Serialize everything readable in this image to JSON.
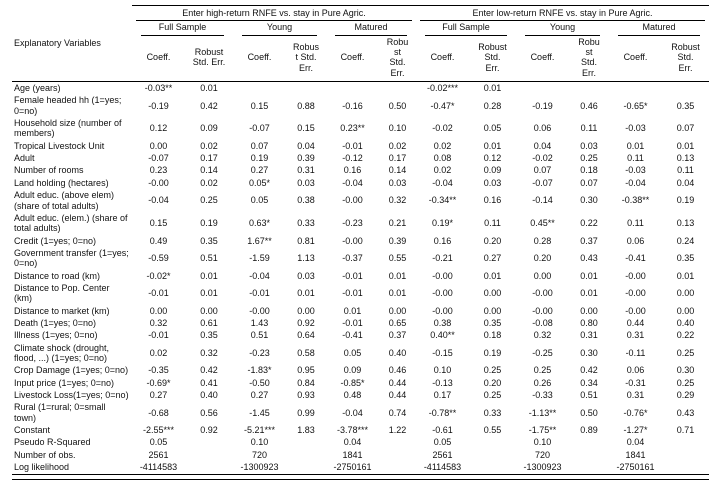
{
  "table": {
    "corner_label": "Explanatory Variables",
    "groups": [
      {
        "title": "Enter high-return RNFE vs. stay in Pure Agric."
      },
      {
        "title": "Enter low-return RNFE vs. stay in Pure Agric."
      }
    ],
    "subgroups": [
      "Full Sample",
      "Young",
      "Matured",
      "Full Sample",
      "Young",
      "Matured"
    ],
    "measure_headers": [
      "Coeff.",
      "Robust\nStd. Err.",
      "Coeff.",
      "Robus\nt Std.\nErr.",
      "Coeff.",
      "Robu\nst\nStd.\nErr.",
      "Coeff.",
      "Robust\nStd.\nErr.",
      "Coeff.",
      "Robu\nst\nStd.\nErr.",
      "Coeff.",
      "Robust\nStd.\nErr."
    ],
    "rows": [
      {
        "label": "Age (years)",
        "values": [
          "-0.03**",
          "0.01",
          "",
          "",
          "",
          "",
          "-0.02***",
          "0.01",
          "",
          "",
          "",
          ""
        ]
      },
      {
        "label": "Female headed hh (1=yes; 0=no)",
        "values": [
          "-0.19",
          "0.42",
          "0.15",
          "0.88",
          "-0.16",
          "0.50",
          "-0.47*",
          "0.28",
          "-0.19",
          "0.46",
          "-0.65*",
          "0.35"
        ]
      },
      {
        "label": "Household size (number of members)",
        "values": [
          "0.12",
          "0.09",
          "-0.07",
          "0.15",
          "0.23**",
          "0.10",
          "-0.02",
          "0.05",
          "0.06",
          "0.11",
          "-0.03",
          "0.07"
        ]
      },
      {
        "label": "Tropical Livestock Unit",
        "values": [
          "0.00",
          "0.02",
          "0.07",
          "0.04",
          "-0.01",
          "0.02",
          "0.02",
          "0.01",
          "0.04",
          "0.03",
          "0.01",
          "0.01"
        ]
      },
      {
        "label": "Adult",
        "values": [
          "-0.07",
          "0.17",
          "0.19",
          "0.39",
          "-0.12",
          "0.17",
          "0.08",
          "0.12",
          "-0.02",
          "0.25",
          "0.11",
          "0.13"
        ]
      },
      {
        "label": "Number of rooms",
        "values": [
          "0.23",
          "0.14",
          "0.27",
          "0.31",
          "0.16",
          "0.14",
          "0.02",
          "0.09",
          "0.07",
          "0.18",
          "-0.03",
          "0.11"
        ]
      },
      {
        "label": "Land holding (hectares)",
        "values": [
          "-0.00",
          "0.02",
          "0.05*",
          "0.03",
          "-0.04",
          "0.03",
          "-0.04",
          "0.03",
          "-0.07",
          "0.07",
          "-0.04",
          "0.04"
        ]
      },
      {
        "label": "Adult educ. (above elem) (share of total adults)",
        "values": [
          "-0.04",
          "0.25",
          "0.05",
          "0.38",
          "-0.00",
          "0.32",
          "-0.34**",
          "0.16",
          "-0.14",
          "0.30",
          "-0.38**",
          "0.19"
        ]
      },
      {
        "label": "Adult educ. (elem.) (share of total adults)",
        "values": [
          "0.15",
          "0.19",
          "0.63*",
          "0.33",
          "-0.23",
          "0.21",
          "0.19*",
          "0.11",
          "0.45**",
          "0.22",
          "0.11",
          "0.13"
        ]
      },
      {
        "label": "Credit (1=yes; 0=no)",
        "values": [
          "0.49",
          "0.35",
          "1.67**",
          "0.81",
          "-0.00",
          "0.39",
          "0.16",
          "0.20",
          "0.28",
          "0.37",
          "0.06",
          "0.24"
        ]
      },
      {
        "label": "Government transfer (1=yes; 0=no)",
        "values": [
          "-0.59",
          "0.51",
          "-1.59",
          "1.13",
          "-0.37",
          "0.55",
          "-0.21",
          "0.27",
          "0.20",
          "0.43",
          "-0.41",
          "0.35"
        ]
      },
      {
        "label": "Distance to road (km)",
        "values": [
          "-0.02*",
          "0.01",
          "-0.04",
          "0.03",
          "-0.01",
          "0.01",
          "-0.00",
          "0.01",
          "0.00",
          "0.01",
          "-0.00",
          "0.01"
        ]
      },
      {
        "label": "Distance to Pop. Center (km)",
        "values": [
          "-0.01",
          "0.01",
          "-0.01",
          "0.01",
          "-0.01",
          "0.01",
          "-0.00",
          "0.00",
          "-0.00",
          "0.01",
          "-0.00",
          "0.00"
        ]
      },
      {
        "label": "Distance to market (km)",
        "values": [
          "0.00",
          "0.00",
          "-0.00",
          "0.00",
          "0.01",
          "0.00",
          "-0.00",
          "0.00",
          "-0.00",
          "0.00",
          "-0.00",
          "0.00"
        ]
      },
      {
        "label": "Death (1=yes; 0=no)",
        "values": [
          "0.32",
          "0.61",
          "1.43",
          "0.92",
          "-0.01",
          "0.65",
          "0.38",
          "0.35",
          "-0.08",
          "0.80",
          "0.44",
          "0.40"
        ]
      },
      {
        "label": "Illness (1=yes; 0=no)",
        "values": [
          "-0.01",
          "0.35",
          "0.51",
          "0.64",
          "-0.41",
          "0.37",
          "0.40**",
          "0.18",
          "0.32",
          "0.31",
          "0.31",
          "0.22"
        ]
      },
      {
        "label": "Climate shock (drought, flood, ...) (1=yes; 0=no)",
        "values": [
          "0.02",
          "0.32",
          "-0.23",
          "0.58",
          "0.05",
          "0.40",
          "-0.15",
          "0.19",
          "-0.25",
          "0.30",
          "-0.11",
          "0.25"
        ]
      },
      {
        "label": "Crop Damage (1=yes; 0=no)",
        "values": [
          "-0.35",
          "0.42",
          "-1.83*",
          "0.95",
          "0.09",
          "0.46",
          "0.10",
          "0.25",
          "0.25",
          "0.42",
          "0.06",
          "0.30"
        ]
      },
      {
        "label": "Input price  (1=yes; 0=no)",
        "values": [
          "-0.69*",
          "0.41",
          "-0.50",
          "0.84",
          "-0.85*",
          "0.44",
          "-0.13",
          "0.20",
          "0.26",
          "0.34",
          "-0.31",
          "0.25"
        ]
      },
      {
        "label": "Livestock Loss(1=yes; 0=no)",
        "values": [
          "0.27",
          "0.40",
          "0.27",
          "0.93",
          "0.48",
          "0.44",
          "0.17",
          "0.25",
          "-0.33",
          "0.51",
          "0.31",
          "0.29"
        ]
      },
      {
        "label": "Rural (1=rural; 0=small town)",
        "values": [
          "-0.68",
          "0.56",
          "-1.45",
          "0.99",
          "-0.04",
          "0.74",
          "-0.78**",
          "0.33",
          "-1.13**",
          "0.50",
          "-0.76*",
          "0.43"
        ]
      },
      {
        "label": "Constant",
        "values": [
          "-2.55***",
          "0.92",
          "-5.21***",
          "1.83",
          "-3.78***",
          "1.22",
          "-0.61",
          "0.55",
          "-1.75**",
          "0.89",
          "-1.27*",
          "0.71"
        ]
      },
      {
        "label": "Pseudo R-Squared",
        "values": [
          "0.05",
          "",
          "0.10",
          "",
          "0.04",
          "",
          "0.05",
          "",
          "0.10",
          "",
          "0.04",
          ""
        ]
      },
      {
        "label": "Number of obs.",
        "values": [
          "2561",
          "",
          "720",
          "",
          "1841",
          "",
          "2561",
          "",
          "720",
          "",
          "1841",
          ""
        ]
      },
      {
        "label": "Log likelihood",
        "values": [
          "-4114583",
          "",
          "-1300923",
          "",
          "-2750161",
          "",
          "-4114583",
          "",
          "-1300923",
          "",
          "-2750161",
          ""
        ]
      }
    ]
  }
}
